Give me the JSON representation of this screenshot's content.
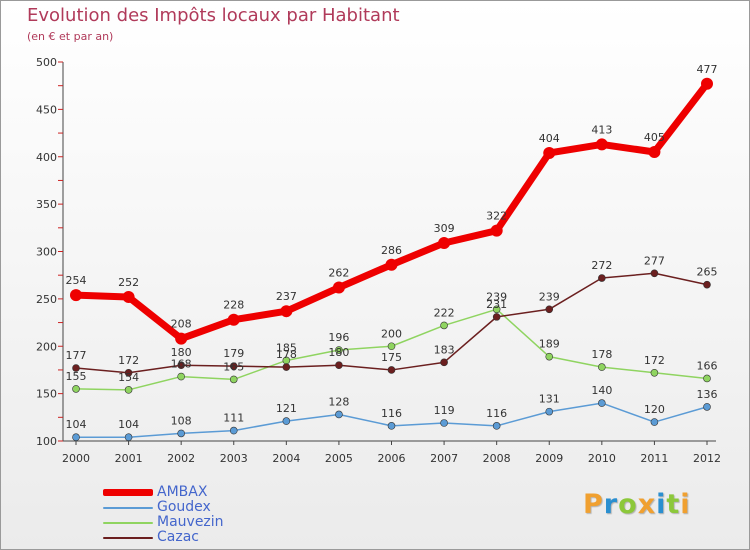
{
  "title": "Evolution des Impôts locaux par Habitant",
  "subtitle": "(en € et par an)",
  "brand": {
    "text": "Proxiti",
    "letters": [
      {
        "ch": "P",
        "color": "#f0a030"
      },
      {
        "ch": "r",
        "color": "#2a8fd0"
      },
      {
        "ch": "o",
        "color": "#8cc83a"
      },
      {
        "ch": "x",
        "color": "#f0a030"
      },
      {
        "ch": "i",
        "color": "#2a8fd0"
      },
      {
        "ch": "t",
        "color": "#8cc83a"
      },
      {
        "ch": "i",
        "color": "#f0a030"
      }
    ]
  },
  "chart_data": {
    "type": "line",
    "title": "Evolution des Impôts locaux par Habitant",
    "subtitle": "(en € et par an)",
    "x": [
      "2000",
      "2001",
      "2002",
      "2003",
      "2004",
      "2005",
      "2006",
      "2007",
      "2008",
      "2009",
      "2010",
      "2011",
      "2012"
    ],
    "ylim": [
      100,
      500
    ],
    "yticks": [
      100,
      150,
      200,
      250,
      300,
      350,
      400,
      450,
      500
    ],
    "grid": false,
    "legend_position": "bottom-left",
    "series": [
      {
        "name": "AMBAX",
        "color": "#ee0000",
        "values": [
          254,
          252,
          208,
          228,
          237,
          262,
          286,
          309,
          322,
          404,
          413,
          405,
          477
        ],
        "labels": [
          "254",
          "252",
          "208",
          "228",
          "237",
          "262",
          "286",
          "309",
          "322",
          "404",
          "413",
          "405",
          "477"
        ]
      },
      {
        "name": "Goudex",
        "color": "#5b9bd5",
        "values": [
          104,
          104,
          108,
          111,
          121,
          128,
          116,
          119,
          116,
          131,
          140,
          120,
          136
        ],
        "labels": [
          "104",
          "104",
          "108",
          "111",
          "121",
          "128",
          "116",
          "119",
          "116",
          "131",
          "140",
          "120",
          "136"
        ]
      },
      {
        "name": "Mauvezin",
        "color": "#8fd460",
        "values": [
          155,
          154,
          168,
          165,
          185,
          196,
          200,
          222,
          239,
          189,
          178,
          172,
          166
        ],
        "labels": [
          "155",
          "154",
          "168",
          "165",
          "185",
          "196",
          "200",
          "222",
          "239",
          "189",
          "178",
          "172",
          "166"
        ]
      },
      {
        "name": "Cazac",
        "color": "#6b1f1f",
        "values": [
          177,
          172,
          180,
          179,
          178,
          180,
          175,
          183,
          231,
          239,
          272,
          277,
          265
        ],
        "labels": [
          "177",
          "172",
          "180",
          "179",
          "178",
          "180",
          "175",
          "183",
          "231",
          "239",
          "272",
          "277",
          "265"
        ]
      }
    ]
  }
}
